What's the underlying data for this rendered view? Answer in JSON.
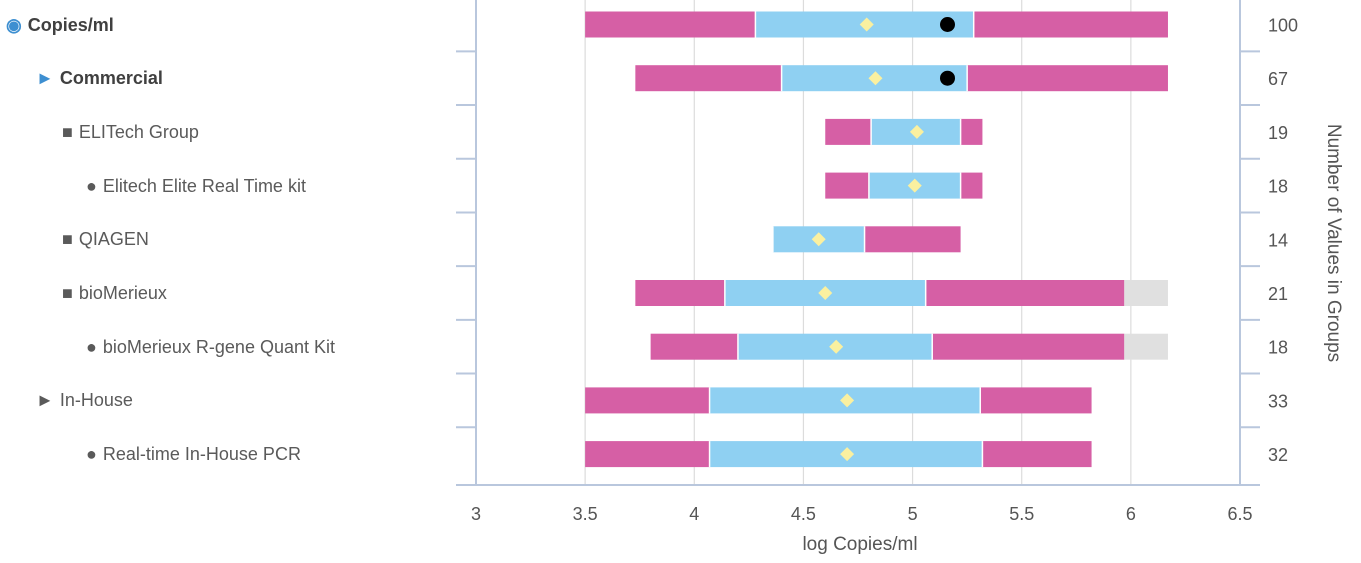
{
  "chart_data": {
    "type": "range-bar",
    "xlabel": "log Copies/ml",
    "ylabel_right": "Number of Values in Groups",
    "xlim": [
      3,
      6.5
    ],
    "xticks": [
      "3",
      "3.5",
      "4",
      "4.5",
      "5",
      "5.5",
      "6",
      "6.5"
    ],
    "colors": {
      "outer": "#d65fa5",
      "inner": "#8fd0f2",
      "outlier": "#e0e0e0",
      "mean": "#faf0a0",
      "reference": "#000000"
    },
    "rows": [
      {
        "label": "Copies/ml",
        "symbol": "◉",
        "level": 0,
        "count": "100",
        "outer_left": 3.5,
        "q1": 4.28,
        "q3": 5.28,
        "outer_right": 6.17,
        "outlier_right": null,
        "mean": 4.79,
        "reference": 5.16
      },
      {
        "label": "Commercial",
        "symbol": "►",
        "level": 1,
        "bold": true,
        "count": "67",
        "outer_left": 3.73,
        "q1": 4.4,
        "q3": 5.25,
        "outer_right": 6.17,
        "outlier_right": null,
        "mean": 4.83,
        "reference": 5.16
      },
      {
        "label": "ELITech Group",
        "symbol": "■",
        "level": 2,
        "count": "19",
        "outer_left": 4.6,
        "q1": 4.81,
        "q3": 5.22,
        "outer_right": 5.32,
        "outlier_right": null,
        "mean": 5.02,
        "reference": null
      },
      {
        "label": "Elitech Elite Real Time kit",
        "symbol": "●",
        "level": 3,
        "count": "18",
        "outer_left": 4.6,
        "q1": 4.8,
        "q3": 5.22,
        "outer_right": 5.32,
        "outlier_right": null,
        "mean": 5.01,
        "reference": null
      },
      {
        "label": "QIAGEN",
        "symbol": "■",
        "level": 2,
        "count": "14",
        "outer_left": 4.36,
        "q1": 4.36,
        "q3": 4.78,
        "outer_right": 5.22,
        "outlier_right": null,
        "mean": 4.57,
        "reference": null
      },
      {
        "label": "bioMerieux",
        "symbol": "■",
        "level": 2,
        "count": "21",
        "outer_left": 3.73,
        "q1": 4.14,
        "q3": 5.06,
        "outer_right": 5.97,
        "outlier_right": 6.17,
        "mean": 4.6,
        "reference": null
      },
      {
        "label": "bioMerieux R-gene Quant Kit",
        "symbol": "●",
        "level": 3,
        "count": "18",
        "outer_left": 3.8,
        "q1": 4.2,
        "q3": 5.09,
        "outer_right": 5.97,
        "outlier_right": 6.17,
        "mean": 4.65,
        "reference": null
      },
      {
        "label": "In-House",
        "symbol": "►",
        "level": 1,
        "count": "33",
        "outer_left": 3.5,
        "q1": 4.07,
        "q3": 5.31,
        "outer_right": 5.82,
        "outlier_right": null,
        "mean": 4.7,
        "reference": null
      },
      {
        "label": "Real-time In-House PCR",
        "symbol": "●",
        "level": 3,
        "count": "32",
        "outer_left": 3.5,
        "q1": 4.07,
        "q3": 5.32,
        "outer_right": 5.82,
        "outlier_right": null,
        "mean": 4.7,
        "reference": null
      }
    ]
  }
}
